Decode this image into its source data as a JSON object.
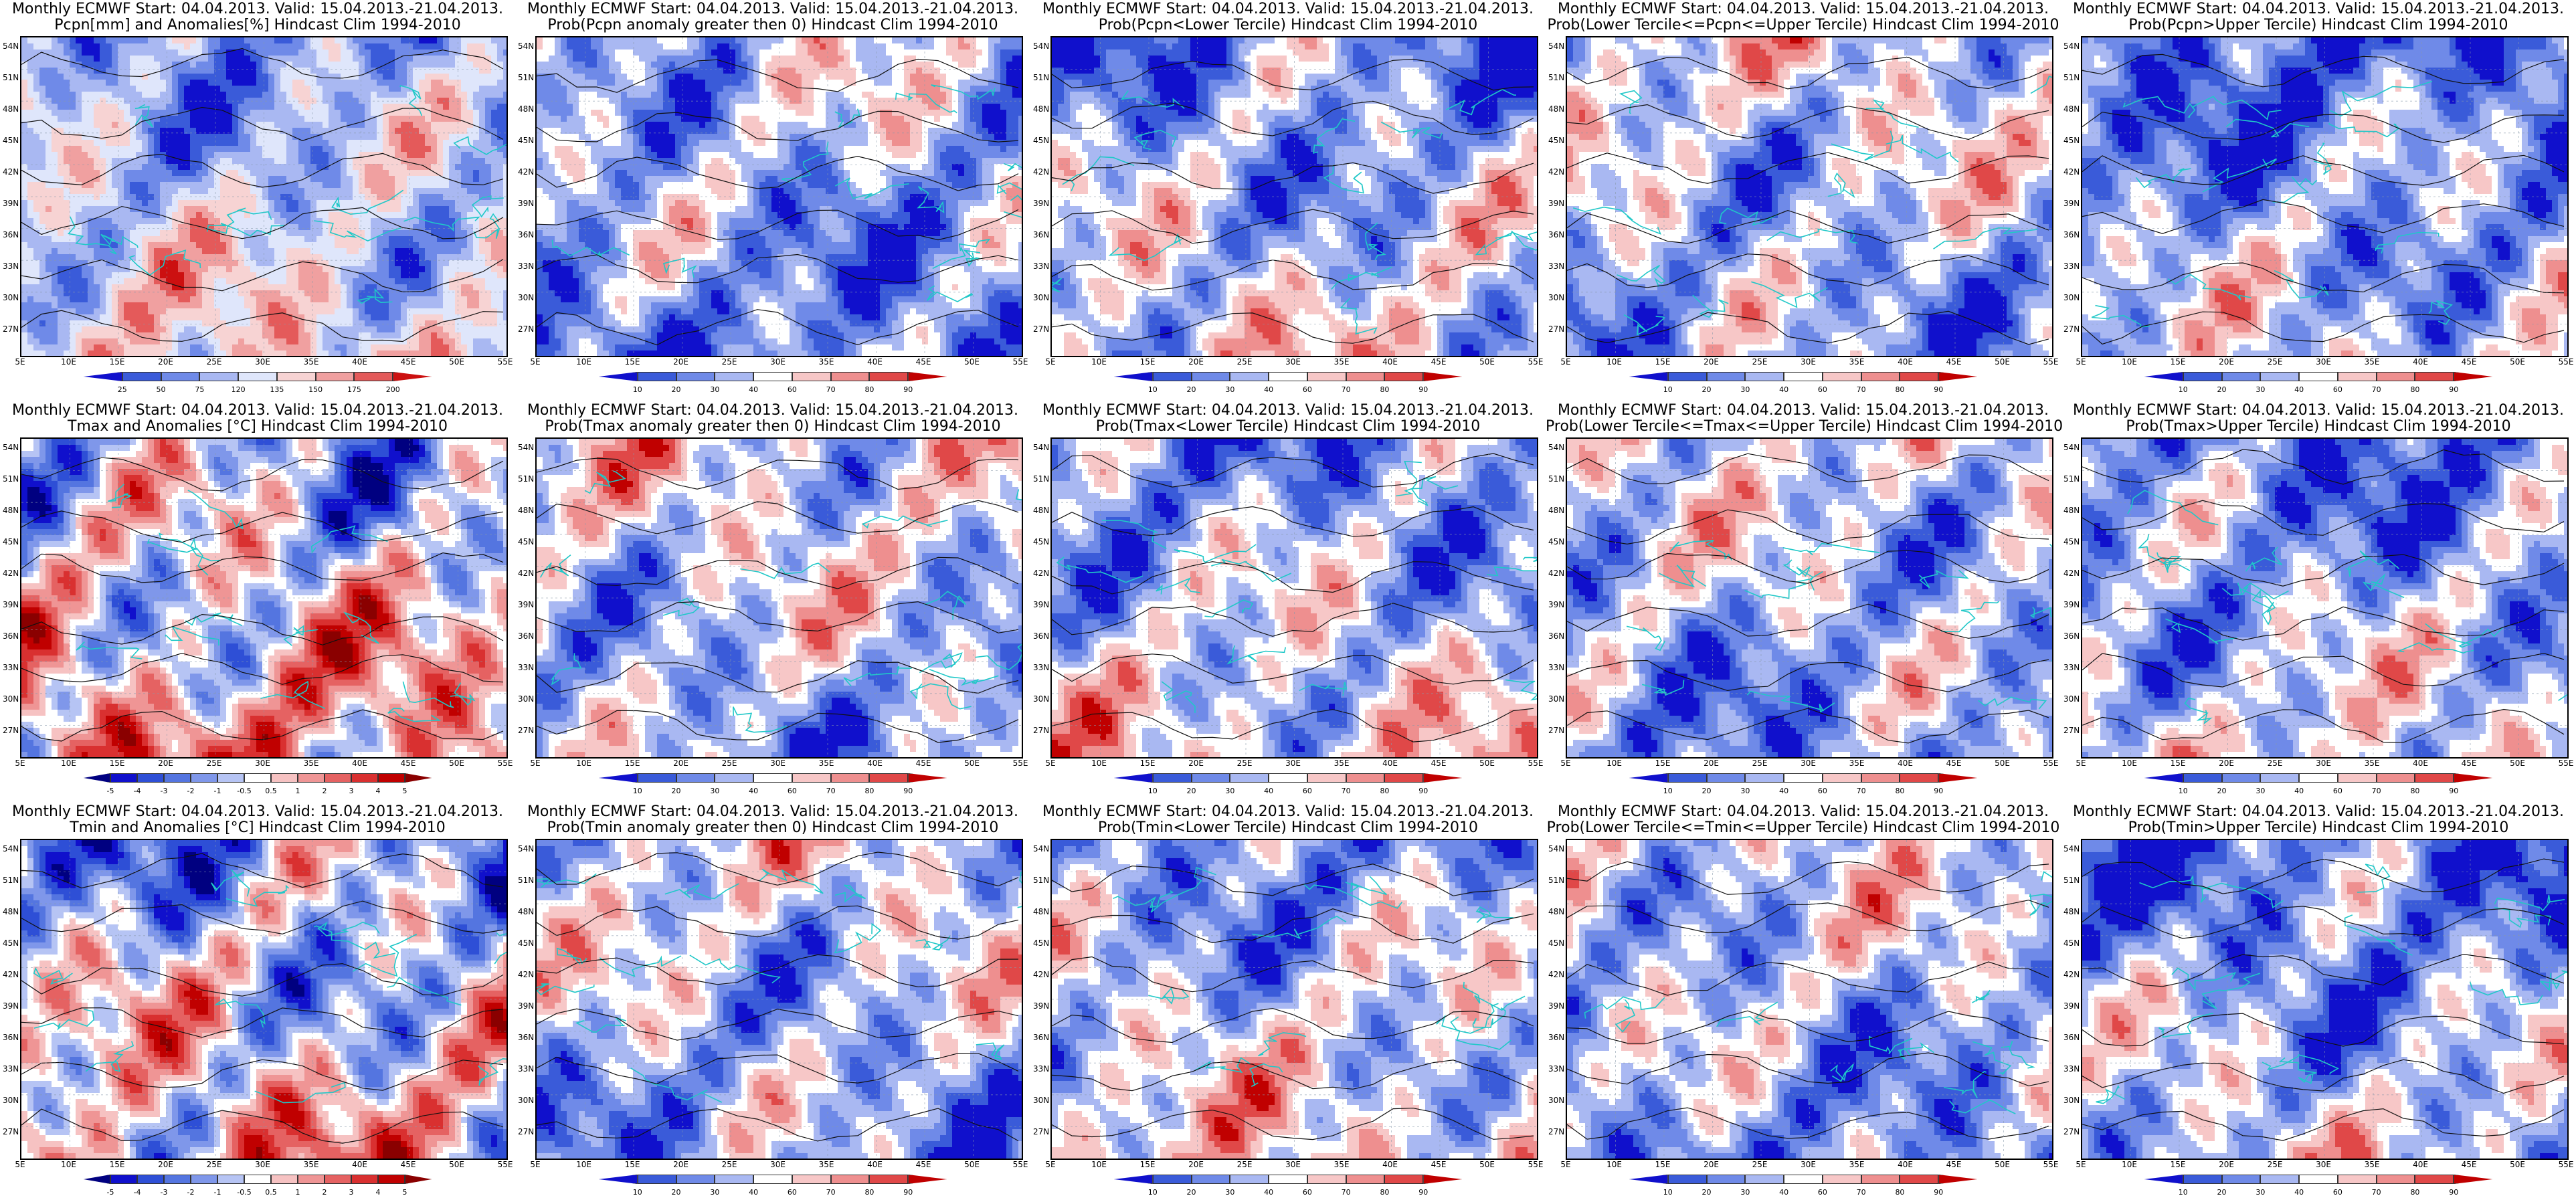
{
  "colorbars": {
    "anom_pcpn": {
      "ticks": [
        "25",
        "50",
        "75",
        "120",
        "135",
        "150",
        "175",
        "200"
      ],
      "colors": [
        "#1010cc",
        "#3a5bd9",
        "#6f8ae8",
        "#a9b8f2",
        "#dfe6fb",
        "#f7d3d3",
        "#f0a0a0",
        "#e45a5a",
        "#cc1010"
      ]
    },
    "anom_temp": {
      "ticks": [
        "-5",
        "-4",
        "-3",
        "-2",
        "-1",
        "-0.5",
        "0.5",
        "1",
        "2",
        "3",
        "4",
        "5"
      ],
      "colors": [
        "#000080",
        "#1010cc",
        "#2e4fd6",
        "#5475e0",
        "#7f97ea",
        "#b6c4f4",
        "#ffffff",
        "#f6c2c2",
        "#ef9595",
        "#e56262",
        "#d93030",
        "#c00000",
        "#8a0000"
      ]
    },
    "prob": {
      "ticks": [
        "10",
        "20",
        "30",
        "40",
        "60",
        "70",
        "80",
        "90"
      ],
      "colors": [
        "#1010cc",
        "#3a5bd9",
        "#6f8ae8",
        "#a9b8f2",
        "#ffffff",
        "#f7c7c7",
        "#ee8f8f",
        "#e04848",
        "#c00000"
      ]
    }
  },
  "lat_labels": [
    "54N",
    "51N",
    "48N",
    "45N",
    "42N",
    "39N",
    "36N",
    "33N",
    "30N",
    "27N"
  ],
  "lon_labels": [
    "5E",
    "10E",
    "15E",
    "20E",
    "25E",
    "30E",
    "35E",
    "40E",
    "45E",
    "50E",
    "55E"
  ],
  "panels": [
    {
      "title1": "Monthly ECMWF Start: 04.04.2013. Valid: 15.04.2013.-21.04.2013.",
      "title2": "Pcpn[mm] and Anomalies[%] Hindcast Clim 1994-2010",
      "palette": "anom_pcpn",
      "seed": 11,
      "bias": -0.1
    },
    {
      "title1": "Monthly ECMWF Start: 04.04.2013. Valid: 15.04.2013.-21.04.2013.",
      "title2": "Prob(Pcpn anomaly greater then 0) Hindcast Clim 1994-2010",
      "palette": "prob",
      "seed": 12,
      "bias": -0.35
    },
    {
      "title1": "Monthly ECMWF Start: 04.04.2013. Valid: 15.04.2013.-21.04.2013.",
      "title2": "Prob(Pcpn<Lower Tercile) Hindcast Clim 1994-2010",
      "palette": "prob",
      "seed": 13,
      "bias": -0.25
    },
    {
      "title1": "Monthly ECMWF Start: 04.04.2013. Valid: 15.04.2013.-21.04.2013.",
      "title2": "Prob(Lower Tercile<=Pcpn<=Upper Tercile) Hindcast Clim 1994-2010",
      "palette": "prob",
      "seed": 14,
      "bias": -0.2
    },
    {
      "title1": "Monthly ECMWF Start: 04.04.2013. Valid: 15.04.2013.-21.04.2013.",
      "title2": "Prob(Pcpn>Upper Tercile) Hindcast Clim 1994-2010",
      "palette": "prob",
      "seed": 15,
      "bias": -0.4
    },
    {
      "title1": "Monthly ECMWF Start: 04.04.2013. Valid: 15.04.2013.-21.04.2013.",
      "title2": "Tmax and Anomalies [°C] Hindcast Clim 1994-2010",
      "palette": "anom_temp",
      "seed": 21,
      "bias": 0.05
    },
    {
      "title1": "Monthly ECMWF Start: 04.04.2013. Valid: 15.04.2013.-21.04.2013.",
      "title2": "Prob(Tmax anomaly greater then 0) Hindcast Clim 1994-2010",
      "palette": "prob",
      "seed": 22,
      "bias": -0.15
    },
    {
      "title1": "Monthly ECMWF Start: 04.04.2013. Valid: 15.04.2013.-21.04.2013.",
      "title2": "Prob(Tmax<Lower Tercile) Hindcast Clim 1994-2010",
      "palette": "prob",
      "seed": 23,
      "bias": -0.2
    },
    {
      "title1": "Monthly ECMWF Start: 04.04.2013. Valid: 15.04.2013.-21.04.2013.",
      "title2": "Prob(Lower Tercile<=Tmax<=Upper Tercile) Hindcast Clim 1994-2010",
      "palette": "prob",
      "seed": 24,
      "bias": -0.25
    },
    {
      "title1": "Monthly ECMWF Start: 04.04.2013. Valid: 15.04.2013.-21.04.2013.",
      "title2": "Prob(Tmax>Upper Tercile) Hindcast Clim 1994-2010",
      "palette": "prob",
      "seed": 25,
      "bias": -0.3
    },
    {
      "title1": "Monthly ECMWF Start: 04.04.2013. Valid: 15.04.2013.-21.04.2013.",
      "title2": "Tmin and Anomalies [°C] Hindcast Clim 1994-2010",
      "palette": "anom_temp",
      "seed": 31,
      "bias": -0.05
    },
    {
      "title1": "Monthly ECMWF Start: 04.04.2013. Valid: 15.04.2013.-21.04.2013.",
      "title2": "Prob(Tmin anomaly greater then 0) Hindcast Clim 1994-2010",
      "palette": "prob",
      "seed": 32,
      "bias": -0.2
    },
    {
      "title1": "Monthly ECMWF Start: 04.04.2013. Valid: 15.04.2013.-21.04.2013.",
      "title2": "Prob(Tmin<Lower Tercile) Hindcast Clim 1994-2010",
      "palette": "prob",
      "seed": 33,
      "bias": -0.15
    },
    {
      "title1": "Monthly ECMWF Start: 04.04.2013. Valid: 15.04.2013.-21.04.2013.",
      "title2": "Prob(Lower Tercile<=Tmin<=Upper Tercile) Hindcast Clim 1994-2010",
      "palette": "prob",
      "seed": 34,
      "bias": -0.25
    },
    {
      "title1": "Monthly ECMWF Start: 04.04.2013. Valid: 15.04.2013.-21.04.2013.",
      "title2": "Prob(Tmin>Upper Tercile) Hindcast Clim 1994-2010",
      "palette": "prob",
      "seed": 35,
      "bias": -0.35
    }
  ]
}
